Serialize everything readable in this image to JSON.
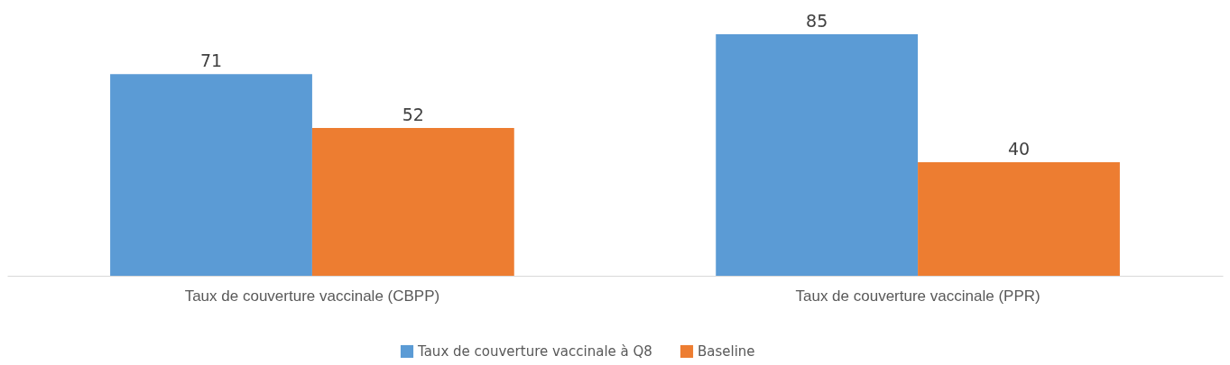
{
  "chart_data": {
    "type": "bar",
    "categories": [
      "Taux de couverture vaccinale (CBPP)",
      "Taux de couverture vaccinale (PPR)"
    ],
    "series": [
      {
        "name": "Taux de couverture vaccinale à Q8",
        "color": "#5b9bd5",
        "values": [
          71,
          85
        ]
      },
      {
        "name": "Baseline",
        "color": "#ed7d31",
        "values": [
          52,
          40
        ]
      }
    ],
    "data_labels": true,
    "legend": "bottom",
    "grid": false
  }
}
